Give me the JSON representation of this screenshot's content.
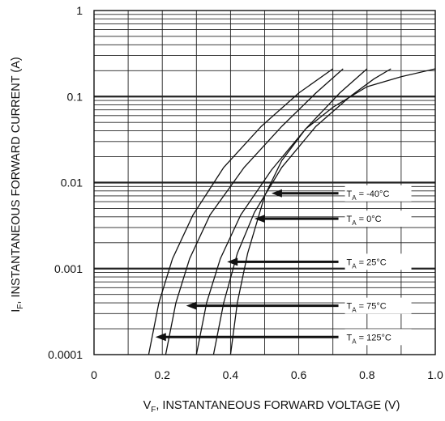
{
  "chart_data": {
    "type": "line",
    "title": "",
    "xlabel": "V",
    "xlabel_sub": "F",
    "xlabel_rest": ", INSTANTANEOUS FORWARD VOLTAGE (V)",
    "ylabel": "I",
    "ylabel_sub": "F",
    "ylabel_rest": ", INSTANTANEOUS FORWARD CURRENT (A)",
    "xlim": [
      0,
      1.0
    ],
    "ylim": [
      0.0001,
      1
    ],
    "y_scale": "log",
    "grid": true,
    "x_ticks": [
      {
        "value": 0,
        "label": "0"
      },
      {
        "value": 0.2,
        "label": "0.2"
      },
      {
        "value": 0.4,
        "label": "0.4"
      },
      {
        "value": 0.6,
        "label": "0.6"
      },
      {
        "value": 0.8,
        "label": "0.8"
      },
      {
        "value": 1.0,
        "label": "1.0"
      }
    ],
    "y_ticks": [
      {
        "value": 1,
        "label": "1"
      },
      {
        "value": 0.1,
        "label": "0.1"
      },
      {
        "value": 0.01,
        "label": "0.01"
      },
      {
        "value": 0.001,
        "label": "0.001"
      },
      {
        "value": 0.0001,
        "label": "0.0001"
      }
    ],
    "series": [
      {
        "name": "-40°C",
        "points": [
          [
            0.4,
            0.0001
          ],
          [
            0.42,
            0.0004
          ],
          [
            0.45,
            0.0015
          ],
          [
            0.5,
            0.007
          ],
          [
            0.55,
            0.018
          ],
          [
            0.62,
            0.042
          ],
          [
            0.7,
            0.075
          ],
          [
            0.8,
            0.13
          ],
          [
            0.9,
            0.17
          ],
          [
            1.0,
            0.21
          ]
        ]
      },
      {
        "name": "0°C",
        "points": [
          [
            0.35,
            0.0001
          ],
          [
            0.38,
            0.0004
          ],
          [
            0.42,
            0.0015
          ],
          [
            0.47,
            0.0045
          ],
          [
            0.55,
            0.015
          ],
          [
            0.65,
            0.045
          ],
          [
            0.75,
            0.1
          ],
          [
            0.82,
            0.16
          ],
          [
            0.87,
            0.21
          ]
        ]
      },
      {
        "name": "25°C",
        "points": [
          [
            0.3,
            0.0001
          ],
          [
            0.33,
            0.0004
          ],
          [
            0.37,
            0.0013
          ],
          [
            0.43,
            0.0042
          ],
          [
            0.52,
            0.014
          ],
          [
            0.62,
            0.042
          ],
          [
            0.72,
            0.11
          ],
          [
            0.8,
            0.21
          ]
        ]
      },
      {
        "name": "75°C",
        "points": [
          [
            0.21,
            0.0001
          ],
          [
            0.24,
            0.0004
          ],
          [
            0.28,
            0.0013
          ],
          [
            0.34,
            0.0042
          ],
          [
            0.44,
            0.015
          ],
          [
            0.55,
            0.045
          ],
          [
            0.65,
            0.11
          ],
          [
            0.73,
            0.21
          ]
        ]
      },
      {
        "name": "125°C",
        "points": [
          [
            0.16,
            0.0001
          ],
          [
            0.19,
            0.0004
          ],
          [
            0.23,
            0.0013
          ],
          [
            0.29,
            0.0042
          ],
          [
            0.38,
            0.015
          ],
          [
            0.49,
            0.045
          ],
          [
            0.6,
            0.11
          ],
          [
            0.7,
            0.21
          ]
        ]
      }
    ],
    "annotations": [
      {
        "text": "T",
        "sub": "A",
        "value": " = -40°C",
        "arrow_to": [
          0.52,
          0.0075
        ],
        "label_at": [
          0.74,
          0.0075
        ]
      },
      {
        "text": "T",
        "sub": "A",
        "value": " = 0°C",
        "arrow_to": [
          0.47,
          0.0038
        ],
        "label_at": [
          0.74,
          0.0038
        ]
      },
      {
        "text": "T",
        "sub": "A",
        "value": " = 25°C",
        "arrow_to": [
          0.39,
          0.0012
        ],
        "label_at": [
          0.74,
          0.0012
        ]
      },
      {
        "text": "T",
        "sub": "A",
        "value": " = 75°C",
        "arrow_to": [
          0.27,
          0.00037
        ],
        "label_at": [
          0.74,
          0.00037
        ]
      },
      {
        "text": "T",
        "sub": "A",
        "value": " = 125°C",
        "arrow_to": [
          0.18,
          0.00016
        ],
        "label_at": [
          0.74,
          0.00016
        ]
      }
    ]
  }
}
